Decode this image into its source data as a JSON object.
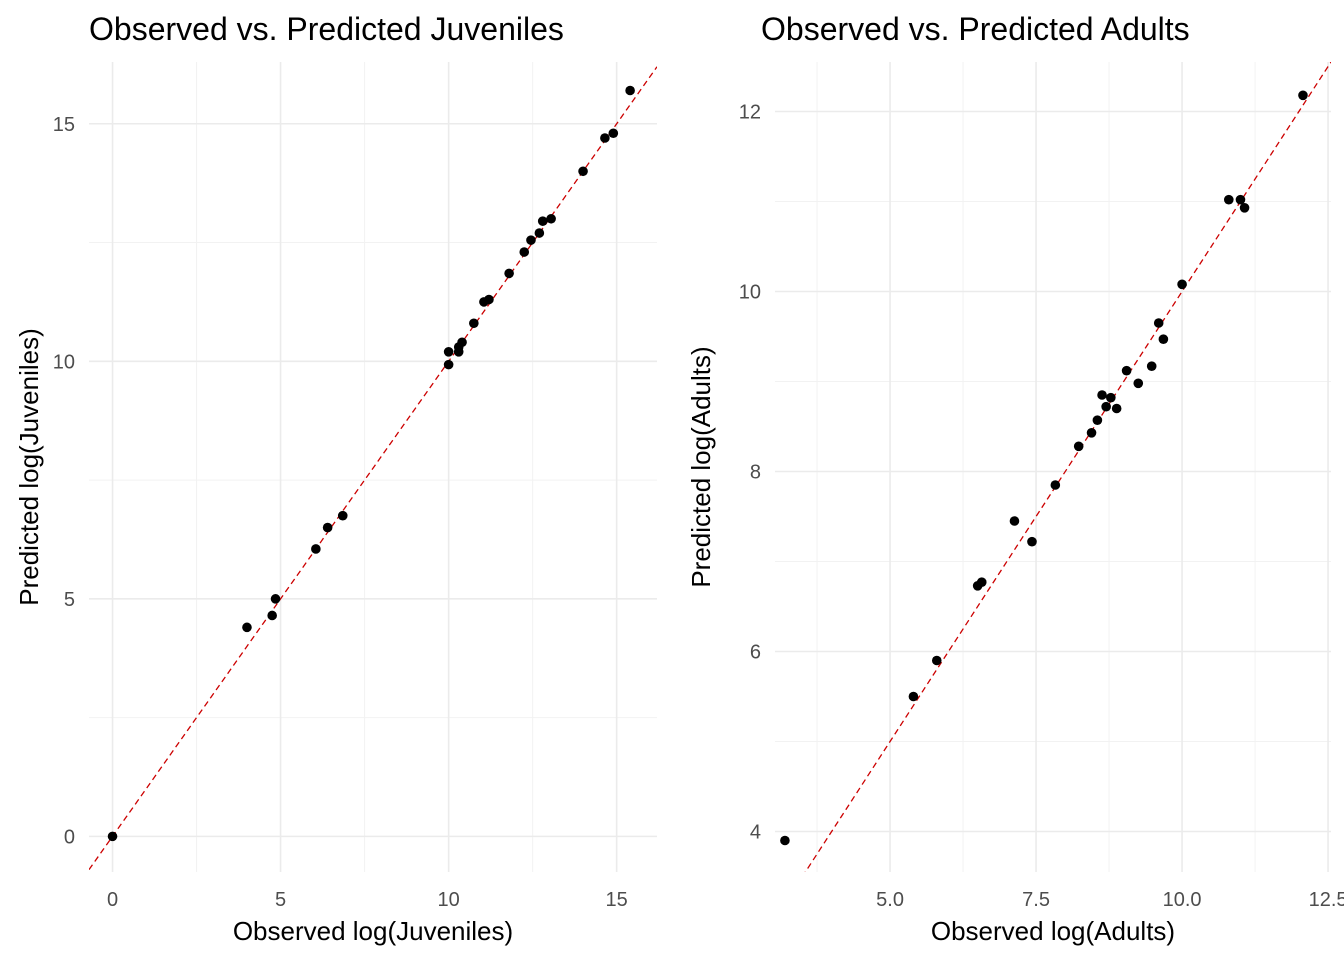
{
  "chart_data": [
    {
      "type": "scatter",
      "title": "Observed vs. Predicted Juveniles",
      "xlabel": "Observed log(Juveniles)",
      "ylabel": "Predicted log(Juveniles)",
      "xlim": [
        -0.7,
        16.2
      ],
      "ylim": [
        -0.75,
        16.3
      ],
      "xticks": [
        0,
        5,
        10,
        15
      ],
      "xtick_labels": [
        "0",
        "5",
        "10",
        "15"
      ],
      "yticks": [
        0,
        5,
        10,
        15
      ],
      "ytick_labels": [
        "0",
        "5",
        "10",
        "15"
      ],
      "xminor": [
        2.5,
        7.5,
        12.5
      ],
      "yminor": [
        2.5,
        7.5,
        12.5
      ],
      "grid": true,
      "reference_line": {
        "slope": 1,
        "intercept": 0,
        "color": "#cc0000",
        "style": "dashed"
      },
      "points": [
        {
          "x": 0.0,
          "y": 0.0
        },
        {
          "x": 4.0,
          "y": 4.4
        },
        {
          "x": 4.75,
          "y": 4.65
        },
        {
          "x": 4.85,
          "y": 5.0
        },
        {
          "x": 6.05,
          "y": 6.05
        },
        {
          "x": 6.4,
          "y": 6.5
        },
        {
          "x": 6.85,
          "y": 6.75
        },
        {
          "x": 10.0,
          "y": 10.2
        },
        {
          "x": 10.0,
          "y": 9.93
        },
        {
          "x": 10.3,
          "y": 10.2
        },
        {
          "x": 10.3,
          "y": 10.3
        },
        {
          "x": 10.4,
          "y": 10.4
        },
        {
          "x": 10.75,
          "y": 10.8
        },
        {
          "x": 11.05,
          "y": 11.25
        },
        {
          "x": 11.2,
          "y": 11.3
        },
        {
          "x": 11.8,
          "y": 11.85
        },
        {
          "x": 12.25,
          "y": 12.3
        },
        {
          "x": 12.45,
          "y": 12.55
        },
        {
          "x": 12.7,
          "y": 12.7
        },
        {
          "x": 12.8,
          "y": 12.95
        },
        {
          "x": 13.05,
          "y": 13.0
        },
        {
          "x": 14.0,
          "y": 14.0
        },
        {
          "x": 14.65,
          "y": 14.7
        },
        {
          "x": 14.9,
          "y": 14.8
        },
        {
          "x": 15.4,
          "y": 15.7
        }
      ]
    },
    {
      "type": "scatter",
      "title": "Observed vs. Predicted Adults",
      "xlabel": "Observed log(Adults)",
      "ylabel": "Predicted log(Adults)",
      "xlim": [
        3.03,
        12.55
      ],
      "ylim": [
        3.55,
        12.55
      ],
      "xticks": [
        5.0,
        7.5,
        10.0,
        12.5
      ],
      "xtick_labels": [
        "5.0",
        "7.5",
        "10.0",
        "12.5"
      ],
      "yticks": [
        4,
        6,
        8,
        10,
        12
      ],
      "ytick_labels": [
        "4",
        "6",
        "8",
        "10",
        "12"
      ],
      "xminor": [
        3.75,
        6.25,
        8.75,
        11.25
      ],
      "yminor": [
        5,
        7,
        9,
        11
      ],
      "grid": true,
      "reference_line": {
        "slope": 1,
        "intercept": 0,
        "color": "#cc0000",
        "style": "dashed"
      },
      "points": [
        {
          "x": 3.2,
          "y": 3.9
        },
        {
          "x": 5.4,
          "y": 5.5
        },
        {
          "x": 5.8,
          "y": 5.9
        },
        {
          "x": 6.5,
          "y": 6.73
        },
        {
          "x": 6.57,
          "y": 6.77
        },
        {
          "x": 7.13,
          "y": 7.45
        },
        {
          "x": 7.43,
          "y": 7.22
        },
        {
          "x": 7.83,
          "y": 7.85
        },
        {
          "x": 8.23,
          "y": 8.28
        },
        {
          "x": 8.45,
          "y": 8.43
        },
        {
          "x": 8.55,
          "y": 8.57
        },
        {
          "x": 8.63,
          "y": 8.85
        },
        {
          "x": 8.7,
          "y": 8.72
        },
        {
          "x": 8.78,
          "y": 8.82
        },
        {
          "x": 8.88,
          "y": 8.7
        },
        {
          "x": 9.05,
          "y": 9.12
        },
        {
          "x": 9.25,
          "y": 8.98
        },
        {
          "x": 9.48,
          "y": 9.17
        },
        {
          "x": 9.6,
          "y": 9.65
        },
        {
          "x": 9.68,
          "y": 9.47
        },
        {
          "x": 10.0,
          "y": 10.08
        },
        {
          "x": 10.8,
          "y": 11.02
        },
        {
          "x": 11.0,
          "y": 11.02
        },
        {
          "x": 11.07,
          "y": 10.93
        },
        {
          "x": 12.07,
          "y": 12.18
        }
      ]
    }
  ]
}
